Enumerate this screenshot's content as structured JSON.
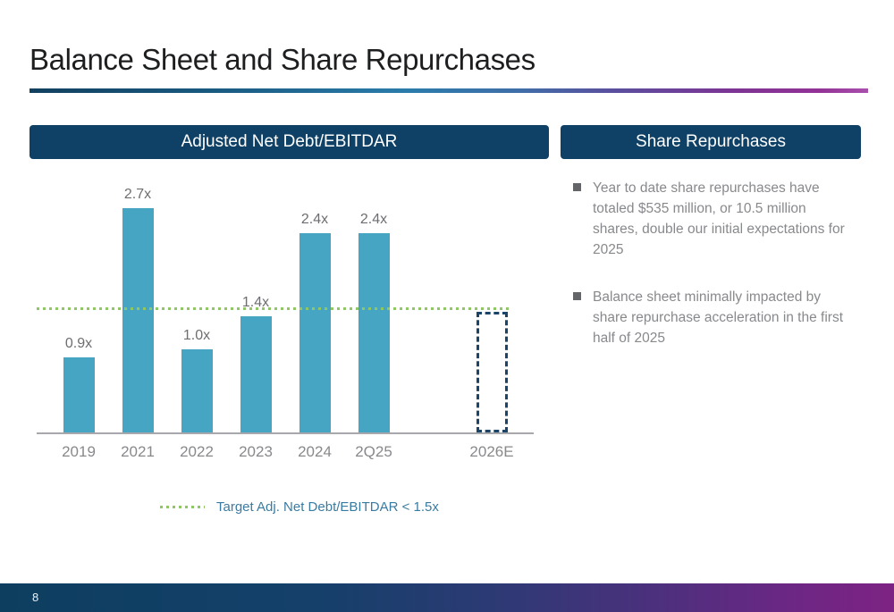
{
  "slide": {
    "title": "Balance Sheet and Share Repurchases",
    "page_number": "8"
  },
  "panels": {
    "left_header": "Adjusted Net Debt/EBITDAR",
    "right_header": "Share Repurchases"
  },
  "bullets": [
    "Year to date share repurchases have totaled $535 million, or 10.5 million shares, double our initial expectations for 2025",
    "Balance sheet minimally impacted by share repurchase acceleration in the first half of 2025"
  ],
  "chart_data": {
    "type": "bar",
    "title": "Adjusted Net Debt/EBITDAR",
    "categories": [
      "2019",
      "2021",
      "2022",
      "2023",
      "2024",
      "2Q25",
      "2026E"
    ],
    "bars": [
      {
        "category": "2019",
        "value": 0.9,
        "label": "0.9x",
        "style": "solid"
      },
      {
        "category": "2021",
        "value": 2.7,
        "label": "2.7x",
        "style": "solid"
      },
      {
        "category": "2022",
        "value": 1.0,
        "label": "1.0x",
        "style": "solid"
      },
      {
        "category": "2023",
        "value": 1.4,
        "label": "1.4x",
        "style": "solid"
      },
      {
        "category": "2024",
        "value": 2.4,
        "label": "2.4x",
        "style": "solid"
      },
      {
        "category": "2Q25",
        "value": 2.4,
        "label": "2.4x",
        "style": "solid"
      },
      {
        "category": "2026E",
        "value": 1.45,
        "label": "",
        "style": "dashed-outline",
        "gap_before": true
      }
    ],
    "target_line": {
      "value": 1.5,
      "label": "Target Adj. Net Debt/EBITDAR < 1.5x",
      "style": "dotted"
    },
    "ylim": [
      0,
      3
    ],
    "grid": false,
    "legend_position": "bottom",
    "bar_color": "#47a5c4",
    "projected_outline_color": "#1a4569",
    "target_line_color": "#8ec764"
  },
  "colors": {
    "header_bar": "#0f4166",
    "title_text": "#1d1e20",
    "body_text": "#87898c",
    "value_label_text": "#6d6e71",
    "legend_text": "#3a7ba1",
    "axis_line": "#a6a8ab",
    "accent_gradient_start": "#12405f",
    "accent_gradient_mid": "#2b7cab",
    "accent_gradient_end": "#923296",
    "footer_gradient_start": "#0d3e5f",
    "footer_gradient_end": "#7d2384"
  }
}
